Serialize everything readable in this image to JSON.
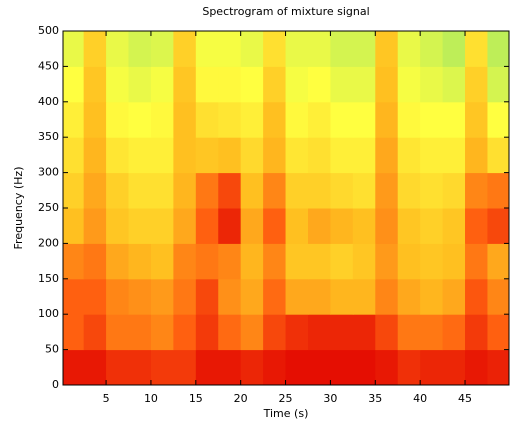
{
  "chart_data": {
    "type": "heatmap",
    "title": "Spectrogram of mixture signal",
    "x_label": "Time (s)",
    "y_label": "Frequency (Hz)",
    "xlim": [
      0.2,
      49.9
    ],
    "xticks": [
      5,
      10,
      15,
      20,
      25,
      30,
      35,
      40,
      45
    ],
    "ylim": [
      0,
      500
    ],
    "yticks": [
      0,
      50,
      100,
      150,
      200,
      250,
      300,
      350,
      400,
      450,
      500
    ],
    "xbins": [
      0,
      2.5,
      5,
      7.5,
      10,
      12.5,
      15,
      17.5,
      20,
      22.5,
      25,
      27.5,
      30,
      32.5,
      35,
      37.5,
      40,
      42.5,
      45,
      47.5,
      50
    ],
    "ybins": [
      0,
      50,
      100,
      150,
      200,
      250,
      300,
      350,
      400,
      450,
      500
    ],
    "clim": [
      0,
      1
    ],
    "colormap": [
      "#30d8d0",
      "#a8e860",
      "#ffff40",
      "#ffc020",
      "#ff6010",
      "#e00000"
    ],
    "z": [
      [
        0.95,
        0.95,
        0.9,
        0.9,
        0.88,
        0.88,
        0.95,
        0.95,
        0.92,
        0.95,
        0.97,
        0.97,
        0.97,
        0.97,
        0.95,
        0.9,
        0.92,
        0.92,
        0.95,
        0.93
      ],
      [
        0.8,
        0.85,
        0.75,
        0.75,
        0.72,
        0.8,
        0.88,
        0.78,
        0.72,
        0.85,
        0.9,
        0.92,
        0.92,
        0.92,
        0.85,
        0.75,
        0.75,
        0.78,
        0.88,
        0.8
      ],
      [
        0.8,
        0.8,
        0.72,
        0.7,
        0.68,
        0.75,
        0.85,
        0.7,
        0.65,
        0.78,
        0.65,
        0.65,
        0.62,
        0.62,
        0.72,
        0.65,
        0.62,
        0.65,
        0.82,
        0.72
      ],
      [
        0.72,
        0.75,
        0.65,
        0.62,
        0.6,
        0.72,
        0.75,
        0.72,
        0.62,
        0.72,
        0.58,
        0.58,
        0.55,
        0.58,
        0.68,
        0.6,
        0.58,
        0.6,
        0.75,
        0.65
      ],
      [
        0.6,
        0.68,
        0.58,
        0.55,
        0.55,
        0.65,
        0.8,
        0.92,
        0.65,
        0.8,
        0.6,
        0.65,
        0.62,
        0.6,
        0.7,
        0.58,
        0.55,
        0.58,
        0.8,
        0.85
      ],
      [
        0.55,
        0.65,
        0.55,
        0.5,
        0.5,
        0.62,
        0.75,
        0.85,
        0.6,
        0.72,
        0.55,
        0.55,
        0.52,
        0.5,
        0.68,
        0.52,
        0.5,
        0.52,
        0.72,
        0.75
      ],
      [
        0.5,
        0.62,
        0.48,
        0.45,
        0.45,
        0.6,
        0.58,
        0.6,
        0.52,
        0.62,
        0.48,
        0.5,
        0.45,
        0.45,
        0.65,
        0.48,
        0.45,
        0.45,
        0.62,
        0.5
      ],
      [
        0.45,
        0.6,
        0.42,
        0.4,
        0.42,
        0.6,
        0.5,
        0.48,
        0.45,
        0.6,
        0.42,
        0.45,
        0.4,
        0.4,
        0.62,
        0.42,
        0.4,
        0.4,
        0.58,
        0.4
      ],
      [
        0.4,
        0.58,
        0.38,
        0.35,
        0.38,
        0.58,
        0.42,
        0.42,
        0.4,
        0.55,
        0.38,
        0.4,
        0.35,
        0.35,
        0.6,
        0.38,
        0.35,
        0.32,
        0.55,
        0.3
      ],
      [
        0.35,
        0.55,
        0.35,
        0.3,
        0.32,
        0.55,
        0.38,
        0.38,
        0.35,
        0.5,
        0.35,
        0.35,
        0.3,
        0.3,
        0.58,
        0.35,
        0.3,
        0.25,
        0.5,
        0.25
      ]
    ]
  }
}
